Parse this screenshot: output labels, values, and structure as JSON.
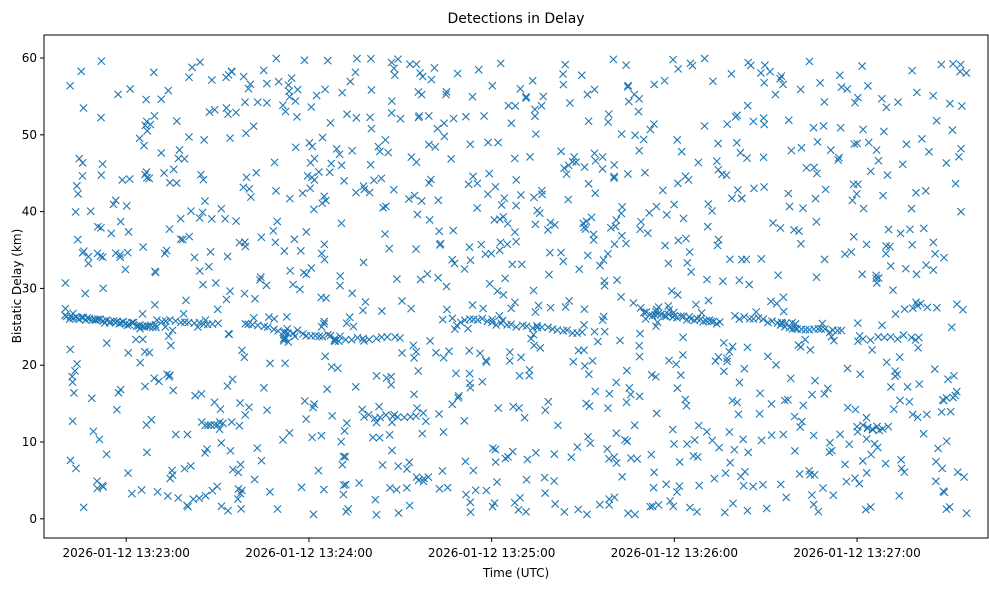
{
  "chart_data": {
    "type": "scatter",
    "title": "Detections in Delay",
    "xlabel": "Time (UTC)",
    "ylabel": "Bistatic Delay (km)",
    "x_start": "2026-01-12 13:22:40",
    "x_end": "2026-01-12 13:27:36",
    "xlim": [
      "2026-01-12 13:22:33",
      "2026-01-12 13:27:43"
    ],
    "ylim": [
      -2.5,
      63.0
    ],
    "x_ticks": [
      "2026-01-12 13:23:00",
      "2026-01-12 13:24:00",
      "2026-01-12 13:25:00",
      "2026-01-12 13:26:00",
      "2026-01-12 13:27:00"
    ],
    "y_ticks": [
      0,
      10,
      20,
      30,
      40,
      50,
      60
    ],
    "marker": "x",
    "color": "#1f77b4",
    "grid": false,
    "noise_points": 1150,
    "y_range": [
      0.5,
      60
    ],
    "tracks": [
      {
        "t0": "2026-01-12 13:22:40",
        "t1": "2026-01-12 13:23:10",
        "y0": 26.3,
        "y1": 25.0,
        "n": 45
      },
      {
        "t0": "2026-01-12 13:23:10",
        "t1": "2026-01-12 13:23:30",
        "y0": 25.8,
        "y1": 25.3,
        "n": 14
      },
      {
        "t0": "2026-01-12 13:23:40",
        "t1": "2026-01-12 13:23:55",
        "y0": 25.2,
        "y1": 24.2,
        "n": 10
      },
      {
        "t0": "2026-01-12 13:23:58",
        "t1": "2026-01-12 13:24:10",
        "y0": 24.0,
        "y1": 23.6,
        "n": 10
      },
      {
        "t0": "2026-01-12 13:24:08",
        "t1": "2026-01-12 13:24:30",
        "y0": 23.3,
        "y1": 23.6,
        "n": 12
      },
      {
        "t0": "2026-01-12 13:24:50",
        "t1": "2026-01-12 13:25:00",
        "y0": 25.7,
        "y1": 26.0,
        "n": 8
      },
      {
        "t0": "2026-01-12 13:25:00",
        "t1": "2026-01-12 13:25:15",
        "y0": 25.5,
        "y1": 25.0,
        "n": 10
      },
      {
        "t0": "2026-01-12 13:25:15",
        "t1": "2026-01-12 13:25:30",
        "y0": 24.9,
        "y1": 24.3,
        "n": 10
      },
      {
        "t0": "2026-01-12 13:25:50",
        "t1": "2026-01-12 13:26:15",
        "y0": 26.8,
        "y1": 25.6,
        "n": 28
      },
      {
        "t0": "2026-01-12 13:26:20",
        "t1": "2026-01-12 13:26:40",
        "y0": 26.2,
        "y1": 25.4,
        "n": 14
      },
      {
        "t0": "2026-01-12 13:26:35",
        "t1": "2026-01-12 13:26:55",
        "y0": 25.0,
        "y1": 24.4,
        "n": 16
      },
      {
        "t0": "2026-01-12 13:27:00",
        "t1": "2026-01-12 13:27:20",
        "y0": 23.3,
        "y1": 23.8,
        "n": 10
      },
      {
        "t0": "2026-01-12 13:23:25",
        "t1": "2026-01-12 13:23:32",
        "y0": 12.4,
        "y1": 12.4,
        "n": 8
      },
      {
        "t0": "2026-01-12 13:24:18",
        "t1": "2026-01-12 13:24:35",
        "y0": 13.3,
        "y1": 13.5,
        "n": 10
      },
      {
        "t0": "2026-01-12 13:27:00",
        "t1": "2026-01-12 13:27:10",
        "y0": 12.0,
        "y1": 11.8,
        "n": 7
      },
      {
        "t0": "2026-01-12 13:23:20",
        "t1": "2026-01-12 13:23:30",
        "y0": 2.0,
        "y1": 4.0,
        "n": 6
      }
    ]
  }
}
